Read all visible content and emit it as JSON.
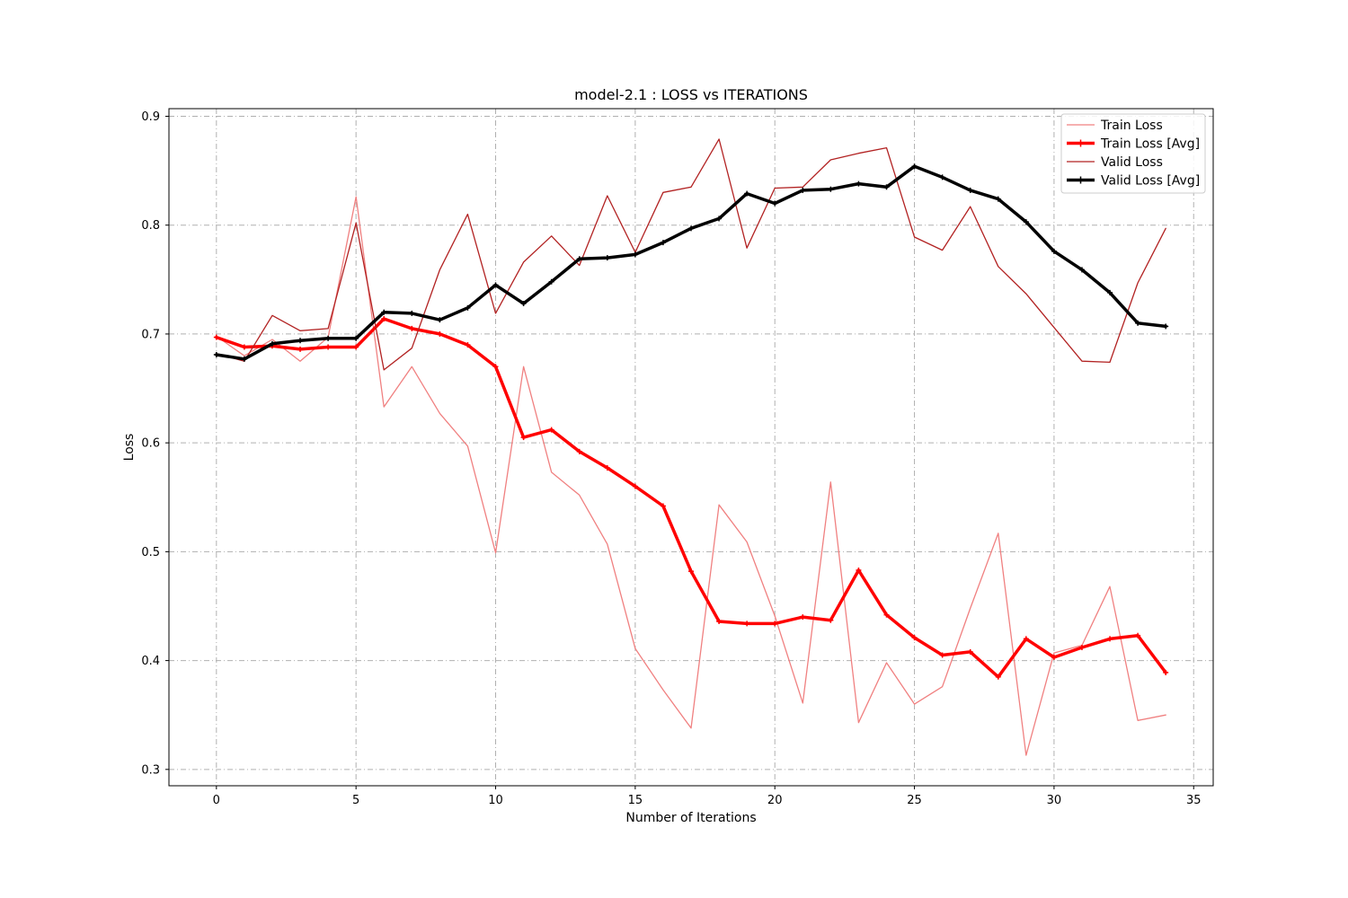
{
  "chart_data": {
    "type": "line",
    "title": "model-2.1 : LOSS vs ITERATIONS",
    "xlabel": "Number of Iterations",
    "ylabel": "Loss",
    "xlim": [
      -1.7,
      35.7
    ],
    "ylim": [
      0.285,
      0.907
    ],
    "xticks": [
      0,
      5,
      10,
      15,
      20,
      25,
      30,
      35
    ],
    "yticks": [
      0.3,
      0.4,
      0.5,
      0.6,
      0.7,
      0.8,
      0.9
    ],
    "grid": true,
    "legend_position": "top-right",
    "x": [
      0,
      1,
      2,
      3,
      4,
      5,
      6,
      7,
      8,
      9,
      10,
      11,
      12,
      13,
      14,
      15,
      16,
      17,
      18,
      19,
      20,
      21,
      22,
      23,
      24,
      25,
      26,
      27,
      28,
      29,
      30,
      31,
      32,
      33,
      34
    ],
    "series": [
      {
        "name": "Train Loss",
        "color": "#f08080",
        "linewidth": 1.3,
        "markers": false,
        "values": [
          0.698,
          0.68,
          0.695,
          0.675,
          0.697,
          0.826,
          0.633,
          0.67,
          0.627,
          0.597,
          0.499,
          0.67,
          0.573,
          0.552,
          0.507,
          0.411,
          0.373,
          0.338,
          0.543,
          0.509,
          0.441,
          0.361,
          0.564,
          0.343,
          0.398,
          0.36,
          0.376,
          0.448,
          0.517,
          0.313,
          0.407,
          0.414,
          0.468,
          0.345,
          0.35
        ]
      },
      {
        "name": "Train Loss [Avg]",
        "color": "#ff0000",
        "linewidth": 3.5,
        "markers": true,
        "values": [
          0.697,
          0.688,
          0.689,
          0.686,
          0.688,
          0.688,
          0.714,
          0.705,
          0.7,
          0.69,
          0.67,
          0.605,
          0.612,
          0.592,
          0.577,
          0.56,
          0.542,
          0.482,
          0.436,
          0.434,
          0.434,
          0.44,
          0.437,
          0.483,
          0.442,
          0.421,
          0.405,
          0.408,
          0.385,
          0.42,
          0.403,
          0.412,
          0.42,
          0.423,
          0.389
        ]
      },
      {
        "name": "Valid Loss",
        "color": "#b22222",
        "linewidth": 1.3,
        "markers": false,
        "values": [
          0.682,
          0.675,
          0.717,
          0.703,
          0.705,
          0.802,
          0.667,
          0.687,
          0.759,
          0.81,
          0.719,
          0.766,
          0.79,
          0.763,
          0.827,
          0.775,
          0.83,
          0.835,
          0.879,
          0.779,
          0.834,
          0.835,
          0.86,
          0.866,
          0.871,
          0.789,
          0.777,
          0.817,
          0.762,
          0.737,
          0.706,
          0.675,
          0.674,
          0.747,
          0.797
        ]
      },
      {
        "name": "Valid Loss [Avg]",
        "color": "#000000",
        "linewidth": 3.5,
        "markers": true,
        "values": [
          0.681,
          0.677,
          0.691,
          0.694,
          0.696,
          0.696,
          0.72,
          0.719,
          0.713,
          0.724,
          0.745,
          0.728,
          0.748,
          0.769,
          0.77,
          0.773,
          0.784,
          0.797,
          0.806,
          0.829,
          0.82,
          0.832,
          0.833,
          0.838,
          0.835,
          0.854,
          0.844,
          0.832,
          0.824,
          0.803,
          0.776,
          0.759,
          0.738,
          0.71,
          0.707
        ]
      }
    ]
  }
}
